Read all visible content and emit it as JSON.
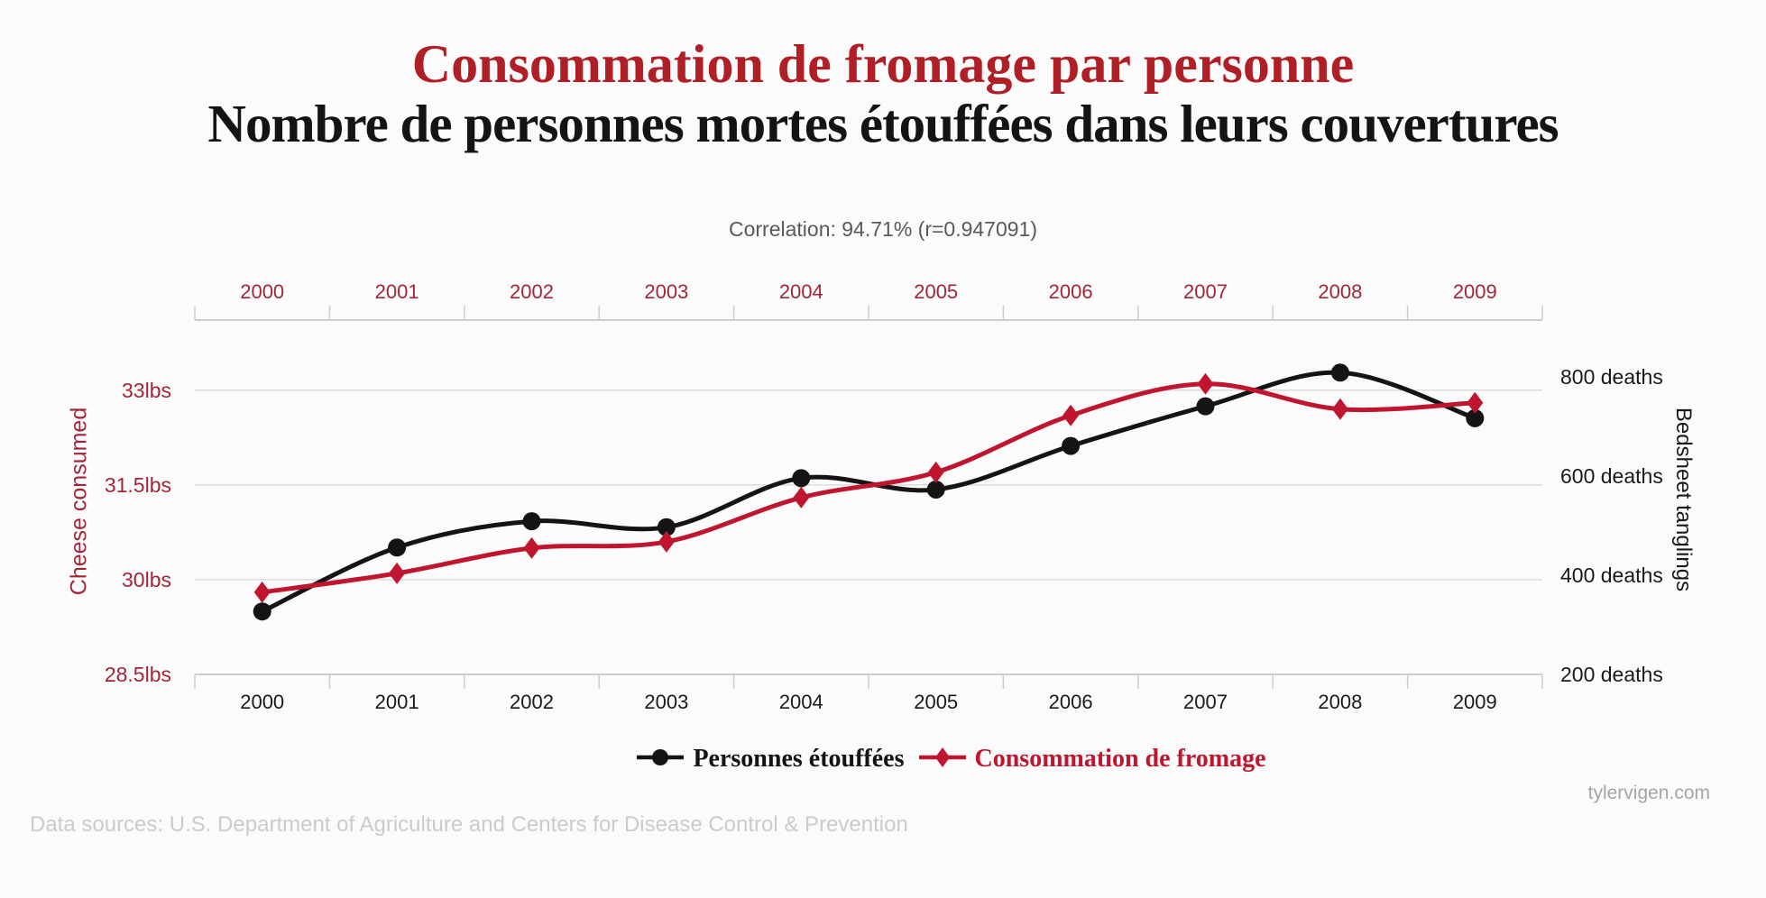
{
  "page": {
    "footer_source": "Data sources: U.S. Department of Agriculture and Centers for Disease Control & Prevention",
    "watermark": "tylervigen.com"
  },
  "colors": {
    "title_red": "#b01e26",
    "text_black": "#141414",
    "axis_label_red": "#a22639",
    "axis_label_black": "#1a1a1a",
    "series_black": "#141414",
    "series_red": "#c0152f",
    "gridline": "#dcdcdc",
    "axis_line": "#c9ced3",
    "correlation_gray": "#58595b",
    "footer_gray": "#cbcbcb",
    "watermark_gray": "#a3a5a8"
  },
  "chart_data": {
    "type": "line",
    "title": "Consommation de fromage par personne",
    "subtitle": "Nombre de personnes mortes étouffées dans leurs couvertures",
    "annotation": "Correlation: 94.71% (r=0.947091)",
    "x": [
      2000,
      2001,
      2002,
      2003,
      2004,
      2005,
      2006,
      2007,
      2008,
      2009
    ],
    "series": [
      {
        "name": "Personnes étouffées",
        "axis": "right",
        "marker": "circle",
        "color": "#141414",
        "values": [
          327,
          456,
          509,
          497,
          596,
          573,
          661,
          741,
          809,
          717
        ]
      },
      {
        "name": "Consommation de fromage",
        "axis": "left",
        "marker": "diamond",
        "color": "#c0152f",
        "values": [
          29.8,
          30.1,
          30.5,
          30.6,
          31.3,
          31.7,
          32.6,
          33.1,
          32.7,
          32.8
        ]
      }
    ],
    "left_axis": {
      "title": "Cheese consumed",
      "unit": "lbs",
      "ylim": [
        28.5,
        34.11
      ],
      "ticks": [
        {
          "value": 33,
          "label": "33lbs"
        },
        {
          "value": 31.5,
          "label": "31.5lbs"
        },
        {
          "value": 30,
          "label": "30lbs"
        },
        {
          "value": 28.5,
          "label": "28.5lbs"
        }
      ]
    },
    "right_axis": {
      "title": "Bedsheet tanglings",
      "unit": "deaths",
      "ylim": [
        200,
        915
      ],
      "ticks": [
        {
          "value": 800,
          "label": "800 deaths"
        },
        {
          "value": 600,
          "label": "600 deaths"
        },
        {
          "value": 400,
          "label": "400 deaths"
        },
        {
          "value": 200,
          "label": "200 deaths"
        }
      ]
    },
    "gridline_values_left_axis": [
      33,
      31.5,
      30
    ],
    "grid": true,
    "legend_position": "bottom",
    "x_axis_labels_shown": "top_and_bottom"
  }
}
